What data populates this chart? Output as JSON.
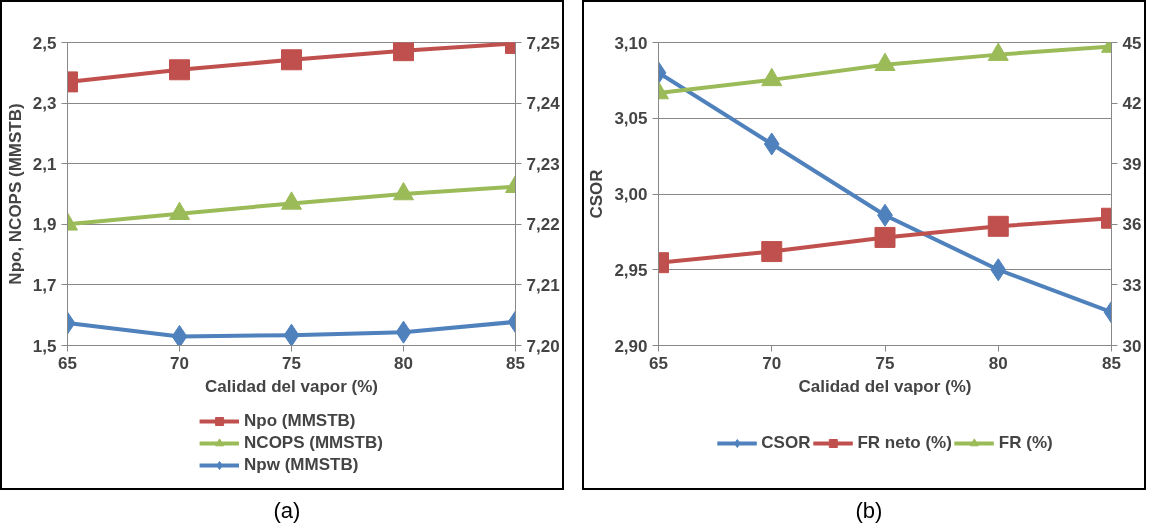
{
  "chart_data": [
    {
      "type": "line",
      "xlabel": "Calidad del vapor (%)",
      "ylabel": "Npo, NCOPS (MMSTB)",
      "x": [
        65,
        70,
        75,
        80,
        85
      ],
      "xlim": [
        65,
        85
      ],
      "xticks": [
        65,
        70,
        75,
        80,
        85
      ],
      "ylim": [
        1.5,
        2.5
      ],
      "yticks": [
        {
          "value": 1.5,
          "label": "1,5"
        },
        {
          "value": 1.7,
          "label": "1,7"
        },
        {
          "value": 1.9,
          "label": "1,9"
        },
        {
          "value": 2.1,
          "label": "2,1"
        },
        {
          "value": 2.3,
          "label": "2,3"
        },
        {
          "value": 2.5,
          "label": "2,5"
        }
      ],
      "y2lim": [
        7.2,
        7.25
      ],
      "y2ticks": [
        {
          "value": 7.2,
          "label": "7,20"
        },
        {
          "value": 7.21,
          "label": "7,21"
        },
        {
          "value": 7.22,
          "label": "7,22"
        },
        {
          "value": 7.23,
          "label": "7,23"
        },
        {
          "value": 7.24,
          "label": "7,24"
        },
        {
          "value": 7.25,
          "label": "7,25"
        }
      ],
      "grid": "y",
      "legend": "bottom",
      "annotations": [
        "(a)"
      ],
      "series": [
        {
          "name": "Npo (MMSTB)",
          "color": "#c0504d",
          "marker": "square",
          "values": [
            2.37,
            2.41,
            2.443,
            2.473,
            2.497
          ]
        },
        {
          "name": "NCOPS (MMSTB)",
          "color": "#9bbb59",
          "marker": "triangle",
          "values": [
            1.9,
            1.935,
            1.969,
            2.0,
            2.024
          ]
        },
        {
          "name": "Npw (MMSTB)",
          "color": "#4f81bd",
          "marker": "diamond",
          "axis": "y2",
          "values": [
            7.2037,
            7.2015,
            7.2017,
            7.2022,
            7.2039
          ]
        }
      ]
    },
    {
      "type": "line",
      "xlabel": "Calidad del vapor (%)",
      "ylabel": "CSOR",
      "x": [
        65,
        70,
        75,
        80,
        85
      ],
      "xlim": [
        65,
        85
      ],
      "xticks": [
        65,
        70,
        75,
        80,
        85
      ],
      "ylim": [
        2.9,
        3.1
      ],
      "yticks": [
        {
          "value": 2.9,
          "label": "2,90"
        },
        {
          "value": 2.95,
          "label": "2,95"
        },
        {
          "value": 3.0,
          "label": "3,00"
        },
        {
          "value": 3.05,
          "label": "3,05"
        },
        {
          "value": 3.1,
          "label": "3,10"
        }
      ],
      "y2lim": [
        30,
        45
      ],
      "y2ticks": [
        30,
        33,
        36,
        39,
        42,
        45
      ],
      "grid": "y",
      "legend": "bottom",
      "annotations": [
        "(b)"
      ],
      "series": [
        {
          "name": "CSOR",
          "color": "#4f81bd",
          "marker": "diamond",
          "values": [
            3.08,
            3.033,
            2.986,
            2.95,
            2.922
          ]
        },
        {
          "name": "FR neto (%)",
          "color": "#c0504d",
          "marker": "square",
          "axis": "y2",
          "values": [
            34.1,
            34.65,
            35.35,
            35.9,
            36.3
          ]
        },
        {
          "name": "FR (%)",
          "color": "#9bbb59",
          "marker": "triangle",
          "axis": "y2",
          "values": [
            42.5,
            43.15,
            43.9,
            44.4,
            44.8
          ]
        }
      ]
    }
  ]
}
